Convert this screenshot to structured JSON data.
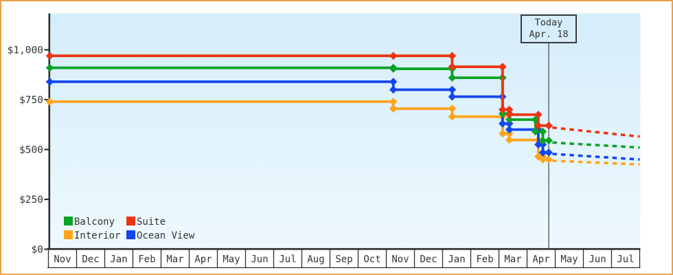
{
  "frame": {
    "border_color": "#eaa24b",
    "background": "#ffffff"
  },
  "axis": {
    "line_color": "#2d2d2d",
    "text_color": "#333333"
  },
  "plot_bg": {
    "top": "#d4edfa",
    "bottom": "#eef9fe"
  },
  "today": {
    "title": "Today",
    "date": "Apr. 18",
    "x_month": 17.77,
    "line_color": "#444444"
  },
  "legend": {
    "items": [
      {
        "label": "Balcony",
        "color": "#0aa226"
      },
      {
        "label": "Suite",
        "color": "#ee3311"
      },
      {
        "label": "Interior",
        "color": "#ffa41c"
      },
      {
        "label": "Ocean View",
        "color": "#1446f0"
      }
    ]
  },
  "chart_data": {
    "type": "line",
    "subtype": "step-price-history",
    "title": "",
    "xlabel": "",
    "ylabel": "",
    "ylim": [
      0,
      1180
    ],
    "grid": false,
    "legend_position": "inside-bottom-left",
    "months": [
      "Nov",
      "Dec",
      "Jan",
      "Feb",
      "Mar",
      "Apr",
      "May",
      "Jun",
      "Jul",
      "Aug",
      "Sep",
      "Oct",
      "Nov",
      "Dec",
      "Jan",
      "Feb",
      "Mar",
      "Apr",
      "May",
      "Jun",
      "Jul"
    ],
    "y_ticks": [
      {
        "label": "$0",
        "value": 0
      },
      {
        "label": "$250",
        "value": 250
      },
      {
        "label": "$500",
        "value": 500
      },
      {
        "label": "$750",
        "value": 750
      },
      {
        "label": "$1,000",
        "value": 1000
      }
    ],
    "series": [
      {
        "name": "Interior",
        "color": "#ffa41c",
        "points": [
          [
            0.05,
            740
          ],
          [
            12.25,
            705
          ],
          [
            14.34,
            665
          ],
          [
            16.13,
            580
          ],
          [
            16.37,
            548
          ],
          [
            17.4,
            465
          ],
          [
            17.56,
            450
          ],
          [
            17.77,
            450
          ]
        ],
        "projection": [
          [
            17.9,
            444
          ],
          [
            21,
            425
          ]
        ]
      },
      {
        "name": "Ocean View",
        "color": "#1446f0",
        "points": [
          [
            0.05,
            840
          ],
          [
            12.25,
            800
          ],
          [
            14.34,
            765
          ],
          [
            16.13,
            630
          ],
          [
            16.37,
            600
          ],
          [
            17.4,
            525
          ],
          [
            17.56,
            485
          ],
          [
            17.77,
            485
          ]
        ],
        "projection": [
          [
            17.9,
            478
          ],
          [
            21,
            450
          ]
        ]
      },
      {
        "name": "Balcony",
        "color": "#0aa226",
        "points": [
          [
            0.05,
            910
          ],
          [
            12.25,
            905
          ],
          [
            14.34,
            860
          ],
          [
            16.13,
            680
          ],
          [
            16.37,
            650
          ],
          [
            17.3,
            590
          ],
          [
            17.56,
            545
          ],
          [
            17.77,
            545
          ]
        ],
        "projection": [
          [
            17.9,
            535
          ],
          [
            21,
            510
          ]
        ]
      },
      {
        "name": "Suite",
        "color": "#ee3311",
        "points": [
          [
            0.05,
            970
          ],
          [
            12.25,
            970
          ],
          [
            14.34,
            915
          ],
          [
            16.13,
            700
          ],
          [
            16.37,
            675
          ],
          [
            17.4,
            620
          ],
          [
            17.77,
            620
          ]
        ],
        "projection": [
          [
            17.9,
            610
          ],
          [
            21,
            565
          ]
        ]
      }
    ]
  }
}
